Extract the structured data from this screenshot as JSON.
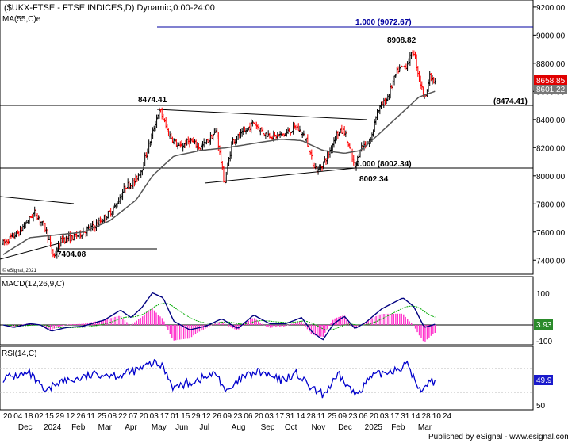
{
  "header": {
    "title": "($UKX-FTSE - FTSE INDICES,D) Dynamic,0:00-24:00",
    "ma_label": "MA(55,C)e",
    "watermark": "© eSignal, 2021"
  },
  "price_panel": {
    "last_price": "8658.85",
    "ma_value": "8601.22",
    "ticks": [
      "9200.00",
      "9000.00",
      "8800.00",
      "8600.00",
      "8400.00",
      "8200.00",
      "8000.00",
      "7800.00",
      "7600.00",
      "7400.00"
    ],
    "annotations": {
      "fib_top": "1.000 (9072.67)",
      "fib_bottom": "0.000 (8002.34)",
      "high": "8908.82",
      "low_nov": "8002.34",
      "high_may": "8474.41",
      "level_right": "(8474.41)",
      "low_2024": "7404.08"
    }
  },
  "macd_panel": {
    "label": "MACD(12,26,9,C)",
    "tick": "100",
    "tick_low": "-100",
    "value": "3.93"
  },
  "rsi_panel": {
    "label": "RSI(14,C)",
    "value": "49.9",
    "tick": "50"
  },
  "x_axis": {
    "days": [
      "20",
      "04",
      "18",
      "02",
      "15",
      "29",
      "12",
      "26",
      "11",
      "25",
      "08",
      "22",
      "07",
      "20",
      "03",
      "17",
      "01",
      "15",
      "29",
      "12",
      "26",
      "09",
      "23",
      "06",
      "20",
      "03",
      "17",
      "31",
      "14",
      "28",
      "11",
      "25",
      "09",
      "23",
      "06",
      "20",
      "03",
      "17",
      "31",
      "14",
      "28",
      "10",
      "24"
    ],
    "months": [
      {
        "label": "Dec",
        "pos": 0.04
      },
      {
        "label": "2024",
        "pos": 0.088
      },
      {
        "label": "Feb",
        "pos": 0.14
      },
      {
        "label": "Mar",
        "pos": 0.19
      },
      {
        "label": "Apr",
        "pos": 0.24
      },
      {
        "label": "May",
        "pos": 0.29
      },
      {
        "label": "Jun",
        "pos": 0.335
      },
      {
        "label": "Jul",
        "pos": 0.38
      },
      {
        "label": "Aug",
        "pos": 0.44
      },
      {
        "label": "Sep",
        "pos": 0.495
      },
      {
        "label": "Oct",
        "pos": 0.54
      },
      {
        "label": "Nov",
        "pos": 0.59
      },
      {
        "label": "Dec",
        "pos": 0.64
      },
      {
        "label": "2025",
        "pos": 0.69
      },
      {
        "label": "Feb",
        "pos": 0.74
      },
      {
        "label": "Mar",
        "pos": 0.79
      }
    ]
  },
  "footer": {
    "published": "Published by eSignal - www.esignal.com"
  },
  "colors": {
    "up": "#000000",
    "down": "#ff0000",
    "ma": "#555555",
    "fib": "#0000a0",
    "macd": "#000080",
    "signal": "#00aa00",
    "hist": "#ff33cc",
    "rsi": "#0000cc",
    "price_tag": "#e00000",
    "ma_tag": "#777777"
  },
  "chart_data": {
    "type": "candlestick",
    "title": "($UKX-FTSE - FTSE INDICES,D) Dynamic,0:00-24:00",
    "ylim": [
      7300,
      9250
    ],
    "key_levels": [
      9072.67,
      8908.82,
      8474.41,
      8002.34,
      7404.08
    ],
    "anchors": [
      {
        "t": 0.0,
        "v": 7520
      },
      {
        "t": 0.03,
        "v": 7600
      },
      {
        "t": 0.05,
        "v": 7700
      },
      {
        "t": 0.06,
        "v": 7740
      },
      {
        "t": 0.08,
        "v": 7620
      },
      {
        "t": 0.095,
        "v": 7420
      },
      {
        "t": 0.11,
        "v": 7550
      },
      {
        "t": 0.13,
        "v": 7560
      },
      {
        "t": 0.15,
        "v": 7600
      },
      {
        "t": 0.17,
        "v": 7640
      },
      {
        "t": 0.19,
        "v": 7700
      },
      {
        "t": 0.21,
        "v": 7780
      },
      {
        "t": 0.23,
        "v": 7930
      },
      {
        "t": 0.245,
        "v": 7950
      },
      {
        "t": 0.26,
        "v": 8050
      },
      {
        "t": 0.28,
        "v": 8300
      },
      {
        "t": 0.29,
        "v": 8440
      },
      {
        "t": 0.295,
        "v": 8460
      },
      {
        "t": 0.31,
        "v": 8300
      },
      {
        "t": 0.33,
        "v": 8200
      },
      {
        "t": 0.35,
        "v": 8250
      },
      {
        "t": 0.37,
        "v": 8200
      },
      {
        "t": 0.385,
        "v": 8250
      },
      {
        "t": 0.4,
        "v": 8320
      },
      {
        "t": 0.415,
        "v": 7940
      },
      {
        "t": 0.43,
        "v": 8250
      },
      {
        "t": 0.45,
        "v": 8300
      },
      {
        "t": 0.47,
        "v": 8380
      },
      {
        "t": 0.49,
        "v": 8300
      },
      {
        "t": 0.51,
        "v": 8280
      },
      {
        "t": 0.53,
        "v": 8300
      },
      {
        "t": 0.55,
        "v": 8350
      },
      {
        "t": 0.57,
        "v": 8250
      },
      {
        "t": 0.58,
        "v": 8100
      },
      {
        "t": 0.59,
        "v": 8030
      },
      {
        "t": 0.61,
        "v": 8150
      },
      {
        "t": 0.625,
        "v": 8300
      },
      {
        "t": 0.64,
        "v": 8320
      },
      {
        "t": 0.66,
        "v": 8050
      },
      {
        "t": 0.67,
        "v": 8200
      },
      {
        "t": 0.69,
        "v": 8250
      },
      {
        "t": 0.7,
        "v": 8450
      },
      {
        "t": 0.72,
        "v": 8550
      },
      {
        "t": 0.74,
        "v": 8750
      },
      {
        "t": 0.755,
        "v": 8780
      },
      {
        "t": 0.77,
        "v": 8890
      },
      {
        "t": 0.78,
        "v": 8700
      },
      {
        "t": 0.79,
        "v": 8550
      },
      {
        "t": 0.8,
        "v": 8700
      },
      {
        "t": 0.81,
        "v": 8659
      }
    ],
    "ma_anchors": [
      {
        "t": 0.0,
        "v": 7440
      },
      {
        "t": 0.05,
        "v": 7560
      },
      {
        "t": 0.1,
        "v": 7580
      },
      {
        "t": 0.15,
        "v": 7600
      },
      {
        "t": 0.2,
        "v": 7680
      },
      {
        "t": 0.25,
        "v": 7830
      },
      {
        "t": 0.28,
        "v": 8000
      },
      {
        "t": 0.32,
        "v": 8140
      },
      {
        "t": 0.37,
        "v": 8180
      },
      {
        "t": 0.42,
        "v": 8200
      },
      {
        "t": 0.47,
        "v": 8230
      },
      {
        "t": 0.52,
        "v": 8260
      },
      {
        "t": 0.56,
        "v": 8250
      },
      {
        "t": 0.6,
        "v": 8180
      },
      {
        "t": 0.64,
        "v": 8160
      },
      {
        "t": 0.67,
        "v": 8180
      },
      {
        "t": 0.7,
        "v": 8280
      },
      {
        "t": 0.74,
        "v": 8420
      },
      {
        "t": 0.78,
        "v": 8560
      },
      {
        "t": 0.81,
        "v": 8601
      }
    ]
  }
}
